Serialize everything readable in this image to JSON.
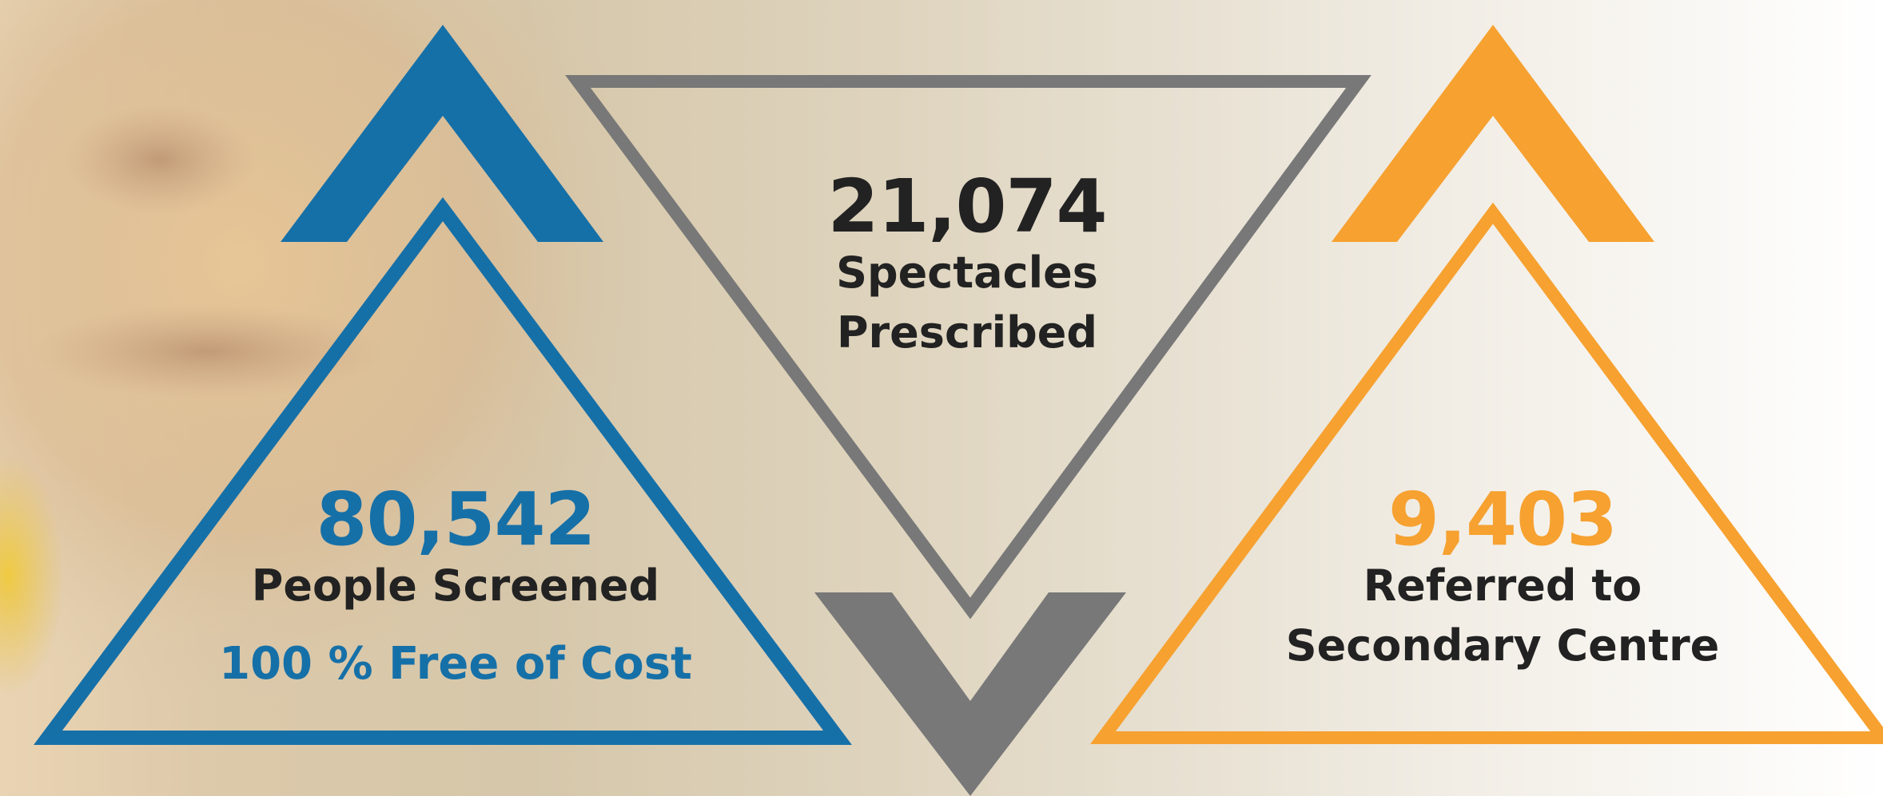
{
  "colors": {
    "blue": "#1670a8",
    "gray": "#787878",
    "orange": "#f6a130",
    "text_dark": "#222222"
  },
  "stats": {
    "screened": {
      "value": "80,542",
      "label": "People Screened",
      "note": "100 % Free of Cost"
    },
    "spectacles": {
      "value": "21,074",
      "label_line1": "Spectacles",
      "label_line2": "Prescribed"
    },
    "referred": {
      "value": "9,403",
      "label_line1": "Referred to",
      "label_line2": "Secondary Centre"
    }
  }
}
